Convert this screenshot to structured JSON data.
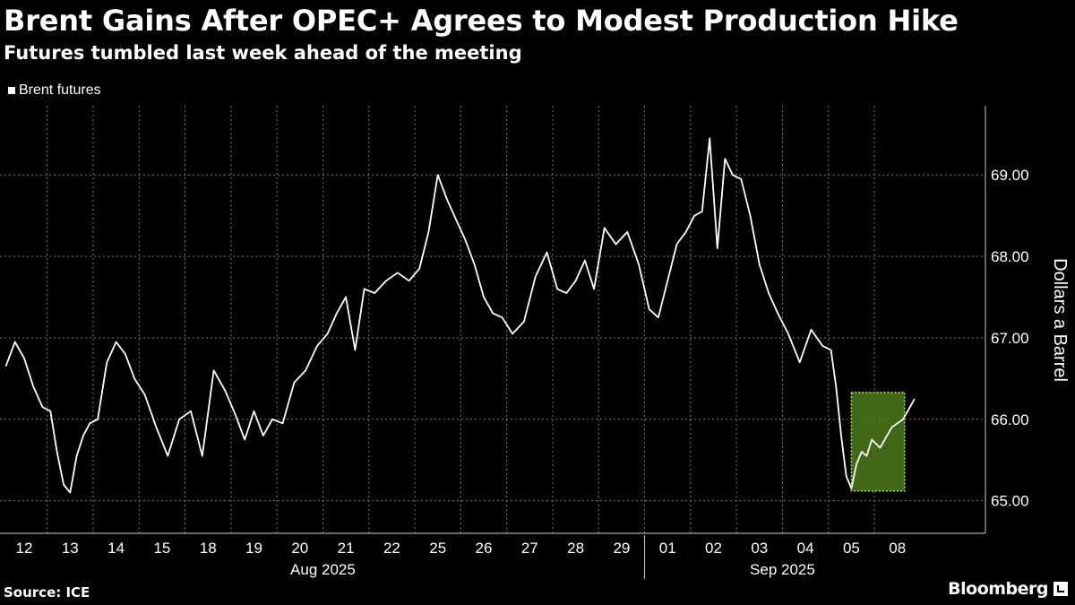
{
  "header": {
    "title": "Brent Gains After OPEC+ Agrees to Modest Production Hike",
    "subtitle": "Futures tumbled last week ahead of the meeting"
  },
  "legend": {
    "label": "Brent futures"
  },
  "footer": {
    "source": "Source: ICE",
    "brand": "Bloomberg"
  },
  "colors": {
    "line": "#ffffff",
    "highlight": "#4c7a1a",
    "highlight_border": "#b9e65c",
    "grid": "#777777"
  },
  "chart_data": {
    "type": "line",
    "ylabel": "Dollars a Barrel",
    "ylim": [
      64.6,
      69.85
    ],
    "yticks": [
      65.0,
      66.0,
      67.0,
      68.0,
      69.0
    ],
    "ytick_labels": [
      "65.00",
      "66.00",
      "67.00",
      "68.00",
      "69.00"
    ],
    "x_days": [
      "12",
      "13",
      "14",
      "15",
      "18",
      "19",
      "20",
      "21",
      "22",
      "25",
      "26",
      "27",
      "28",
      "29",
      "01",
      "02",
      "03",
      "04",
      "05",
      "08"
    ],
    "x_months": [
      {
        "label": "Aug 2025",
        "first_day": "12",
        "last_day": "29"
      },
      {
        "label": "Sep 2025",
        "first_day": "01",
        "last_day": "08"
      }
    ],
    "highlight": {
      "from": "05",
      "to": "08",
      "y_range": [
        65.12,
        66.33
      ]
    },
    "series": [
      {
        "name": "Brent futures",
        "points": [
          [
            "12",
            66.65
          ],
          [
            "12",
            66.95
          ],
          [
            "12",
            66.75
          ],
          [
            "12",
            66.4
          ],
          [
            "12",
            66.15
          ],
          [
            "13",
            66.1
          ],
          [
            "13",
            65.6
          ],
          [
            "13",
            65.2
          ],
          [
            "13",
            65.1
          ],
          [
            "13",
            65.55
          ],
          [
            "13",
            65.8
          ],
          [
            "13",
            65.95
          ],
          [
            "14",
            66.0
          ],
          [
            "14",
            66.7
          ],
          [
            "14",
            66.95
          ],
          [
            "14",
            66.8
          ],
          [
            "14",
            66.5
          ],
          [
            "15",
            66.3
          ],
          [
            "15",
            65.9
          ],
          [
            "15",
            65.55
          ],
          [
            "15",
            66.0
          ],
          [
            "18",
            66.1
          ],
          [
            "18",
            65.55
          ],
          [
            "18",
            66.6
          ],
          [
            "18",
            66.35
          ],
          [
            "19",
            66.05
          ],
          [
            "19",
            65.75
          ],
          [
            "19",
            66.1
          ],
          [
            "19",
            65.8
          ],
          [
            "19",
            66.0
          ],
          [
            "20",
            65.95
          ],
          [
            "20",
            66.45
          ],
          [
            "20",
            66.6
          ],
          [
            "20",
            66.9
          ],
          [
            "21",
            67.05
          ],
          [
            "21",
            67.3
          ],
          [
            "21",
            67.5
          ],
          [
            "21",
            66.85
          ],
          [
            "21",
            67.6
          ],
          [
            "22",
            67.55
          ],
          [
            "22",
            67.7
          ],
          [
            "22",
            67.8
          ],
          [
            "22",
            67.7
          ],
          [
            "25",
            67.85
          ],
          [
            "25",
            68.3
          ],
          [
            "25",
            69.0
          ],
          [
            "25",
            68.7
          ],
          [
            "25",
            68.45
          ],
          [
            "26",
            68.2
          ],
          [
            "26",
            67.9
          ],
          [
            "26",
            67.5
          ],
          [
            "26",
            67.3
          ],
          [
            "26",
            67.25
          ],
          [
            "27",
            67.05
          ],
          [
            "27",
            67.2
          ],
          [
            "27",
            67.75
          ],
          [
            "27",
            68.05
          ],
          [
            "28",
            67.6
          ],
          [
            "28",
            67.55
          ],
          [
            "28",
            67.7
          ],
          [
            "28",
            67.95
          ],
          [
            "28",
            67.6
          ],
          [
            "29",
            68.35
          ],
          [
            "29",
            68.15
          ],
          [
            "29",
            68.3
          ],
          [
            "29",
            67.9
          ],
          [
            "01",
            67.35
          ],
          [
            "01",
            67.25
          ],
          [
            "01",
            67.7
          ],
          [
            "01",
            68.15
          ],
          [
            "01",
            68.3
          ],
          [
            "02",
            68.5
          ],
          [
            "02",
            68.55
          ],
          [
            "02",
            69.45
          ],
          [
            "02",
            68.1
          ],
          [
            "02",
            69.2
          ],
          [
            "02",
            69.0
          ],
          [
            "03",
            68.95
          ],
          [
            "03",
            68.5
          ],
          [
            "03",
            67.9
          ],
          [
            "03",
            67.55
          ],
          [
            "03",
            67.3
          ],
          [
            "04",
            67.05
          ],
          [
            "04",
            66.7
          ],
          [
            "04",
            67.1
          ],
          [
            "04",
            66.9
          ],
          [
            "05",
            66.85
          ],
          [
            "05",
            66.4
          ],
          [
            "05",
            65.8
          ],
          [
            "05",
            65.3
          ],
          [
            "05",
            65.15
          ],
          [
            "05",
            65.45
          ],
          [
            "05",
            65.6
          ],
          [
            "05",
            65.55
          ],
          [
            "05",
            65.75
          ],
          [
            "08",
            65.65
          ],
          [
            "08",
            65.9
          ],
          [
            "08",
            66.0
          ],
          [
            "08",
            66.25
          ]
        ]
      }
    ],
    "grid": true,
    "legend_position": "top-left"
  }
}
